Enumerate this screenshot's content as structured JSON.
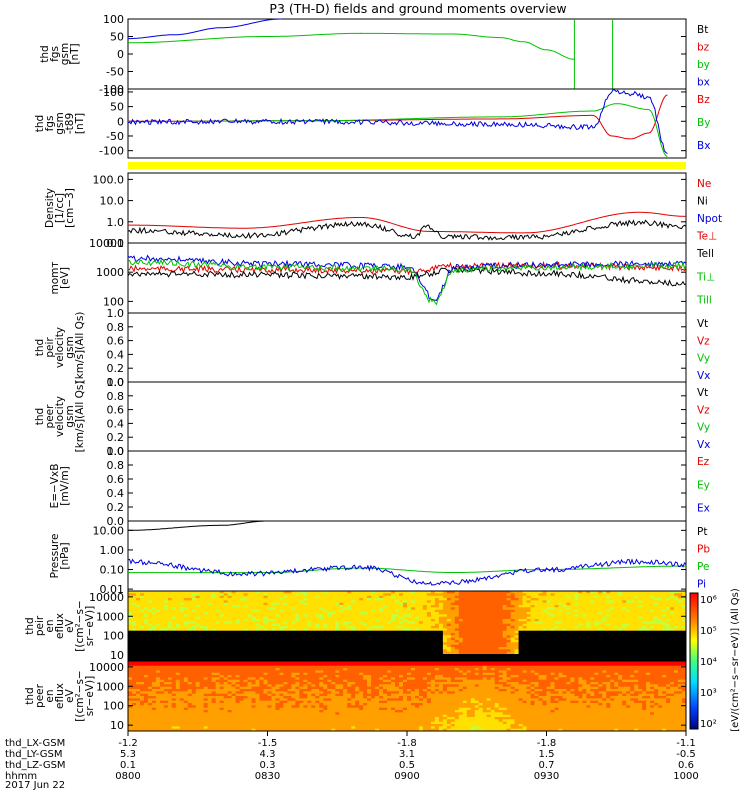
{
  "title": "P3 (TH-D) fields and ground moments overview",
  "date_label": "2017 Jun 22",
  "colors": {
    "black": "#000000",
    "red": "#e00000",
    "green": "#00c000",
    "blue": "#0000e0",
    "yellow": "#ffff00"
  },
  "colorbar": {
    "ticks": [
      "10⁶",
      "10⁵",
      "10⁴",
      "10³",
      "10²"
    ],
    "label": "[eV/(cm²−s−sr−eV)] (All Qs)"
  },
  "x_axis": {
    "tick_times": [
      "0800",
      "0830",
      "0900",
      "0930",
      "1000"
    ],
    "rows": [
      {
        "name": "thd_LX-GSM",
        "values": [
          "-1.2",
          "-1.5",
          "-1.8",
          "-1.8",
          "-1.1"
        ]
      },
      {
        "name": "thd_LY-GSM",
        "values": [
          "5.3",
          "4.3",
          "3.1",
          "1.5",
          "-0.5"
        ]
      },
      {
        "name": "thd_LZ-GSM",
        "values": [
          "0.1",
          "0.3",
          "0.5",
          "0.7",
          "0.6"
        ]
      },
      {
        "name": "hhmm",
        "values": [
          "0800",
          "0830",
          "0900",
          "0930",
          "1000"
        ]
      }
    ]
  },
  "chart_data": [
    {
      "type": "line",
      "ylabel": [
        "thd",
        "fgs",
        "gsm",
        "[nT]"
      ],
      "yticks": [
        "100",
        "50",
        "0",
        "-50",
        "-100"
      ],
      "ylim": [
        -100,
        100
      ],
      "legend": [
        {
          "name": "Bt",
          "color": "black"
        },
        {
          "name": "bz",
          "color": "red"
        },
        {
          "name": "by",
          "color": "green"
        },
        {
          "name": "bx",
          "color": "blue"
        }
      ],
      "series": [
        {
          "name": "bx",
          "color": "blue",
          "x": [
            "08:00",
            "08:10",
            "08:20",
            "08:33"
          ],
          "y": [
            44,
            55,
            75,
            100
          ]
        },
        {
          "name": "by",
          "color": "green",
          "x": [
            "08:00",
            "08:30",
            "08:50",
            "09:10",
            "09:20",
            "09:25",
            "09:30",
            "09:36"
          ],
          "y": [
            32,
            50,
            59,
            57,
            47,
            35,
            12,
            -15
          ]
        }
      ]
    },
    {
      "type": "line",
      "ylabel": [
        "thd",
        "fgs",
        "gsm",
        "-t89",
        "[nT]"
      ],
      "yticks": [
        "100",
        "50",
        "0",
        "-50",
        "-100"
      ],
      "ylim": [
        -125,
        110
      ],
      "legend": [
        {
          "name": "Bz",
          "color": "red"
        },
        {
          "name": "By",
          "color": "green"
        },
        {
          "name": "Bx",
          "color": "blue"
        }
      ],
      "series": [
        {
          "name": "Bz",
          "color": "red",
          "x": [
            "08:00",
            "08:40",
            "09:20",
            "09:40",
            "09:44",
            "09:48",
            "09:52",
            "09:56"
          ],
          "y": [
            0,
            2,
            8,
            20,
            -50,
            -60,
            -40,
            90
          ]
        },
        {
          "name": "By",
          "color": "green",
          "x": [
            "08:00",
            "08:40",
            "09:20",
            "09:40",
            "09:45",
            "09:52",
            "09:56"
          ],
          "y": [
            -1,
            2,
            15,
            35,
            60,
            40,
            -120
          ]
        },
        {
          "name": "Bx",
          "color": "blue",
          "x": [
            "08:00",
            "08:40",
            "09:20",
            "09:40",
            "09:44",
            "09:48",
            "09:52",
            "09:56"
          ],
          "y": [
            -2,
            -1,
            -10,
            -20,
            100,
            95,
            80,
            -110
          ]
        }
      ]
    },
    {
      "type": "line",
      "yscale": "log",
      "ylabel": [
        "Density",
        "[1/cc]",
        "[cm−3]"
      ],
      "yticks": [
        "100.0",
        "10.0",
        "1.0",
        "0.1"
      ],
      "ylim": [
        0.1,
        200
      ],
      "legend": [
        {
          "name": "Ne",
          "color": "red"
        },
        {
          "name": "Ni",
          "color": "black"
        },
        {
          "name": "Npot",
          "color": "blue"
        },
        {
          "name": "Te⊥",
          "color": "red"
        }
      ],
      "series": [
        {
          "name": "Ne",
          "color": "red",
          "x": [
            "08:00",
            "08:25",
            "08:50",
            "09:05",
            "09:25",
            "09:50",
            "10:00"
          ],
          "y": [
            0.7,
            0.5,
            1.6,
            0.35,
            0.3,
            2.8,
            1.8
          ]
        },
        {
          "name": "Ni",
          "color": "black",
          "x": [
            "08:00",
            "08:25",
            "08:50",
            "09:02",
            "09:04",
            "09:08",
            "09:25",
            "09:50",
            "10:00"
          ],
          "y": [
            0.4,
            0.22,
            0.8,
            0.2,
            0.7,
            0.2,
            0.18,
            0.9,
            0.6
          ]
        }
      ]
    },
    {
      "type": "line",
      "yscale": "log",
      "ylabel": [
        "momт",
        "[eV]"
      ],
      "yticks": [
        "10000",
        "1000",
        "100"
      ],
      "ylim": [
        40,
        10000
      ],
      "legend": [
        {
          "name": "Tell",
          "color": "black"
        },
        {
          "name": "Ti⊥",
          "color": "green"
        },
        {
          "name": "Till",
          "color": "green"
        }
      ],
      "series": [
        {
          "name": "Te⊥",
          "color": "red",
          "x": [
            "08:00",
            "08:30",
            "09:00",
            "09:10",
            "09:30",
            "10:00"
          ],
          "y": [
            1300,
            1200,
            1100,
            1600,
            1700,
            1400
          ]
        },
        {
          "name": "Tell",
          "color": "black",
          "x": [
            "08:00",
            "08:30",
            "09:00",
            "09:10",
            "09:30",
            "10:00"
          ],
          "y": [
            900,
            800,
            700,
            1200,
            900,
            400
          ]
        },
        {
          "name": "Ti⊥",
          "color": "blue",
          "x": [
            "08:00",
            "08:30",
            "09:00",
            "09:06",
            "09:10",
            "09:30",
            "10:00"
          ],
          "y": [
            3000,
            2000,
            1600,
            120,
            1500,
            1800,
            2000
          ]
        },
        {
          "name": "Till",
          "color": "green",
          "x": [
            "08:00",
            "08:30",
            "09:00",
            "09:06",
            "09:10",
            "09:30",
            "10:00"
          ],
          "y": [
            2200,
            1500,
            1300,
            90,
            1200,
            1500,
            1700
          ]
        }
      ]
    },
    {
      "type": "line",
      "ylabel": [
        "thd",
        "peir",
        "velocity",
        "gsm",
        "[km/s](All Qs)"
      ],
      "yticks": [
        "1.0",
        "0.8",
        "0.6",
        "0.4",
        "0.2",
        "0.0"
      ],
      "ylim": [
        0,
        1
      ],
      "legend": [
        {
          "name": "Vt",
          "color": "black"
        },
        {
          "name": "Vz",
          "color": "red"
        },
        {
          "name": "Vy",
          "color": "green"
        },
        {
          "name": "Vx",
          "color": "blue"
        }
      ],
      "series": []
    },
    {
      "type": "line",
      "ylabel": [
        "thd",
        "peer",
        "velocity",
        "gsm",
        "[km/s](All Qs)"
      ],
      "yticks": [
        "1.0",
        "0.8",
        "0.6",
        "0.4",
        "0.2",
        "0.0"
      ],
      "ylim": [
        0,
        1
      ],
      "legend": [
        {
          "name": "Vt",
          "color": "black"
        },
        {
          "name": "Vz",
          "color": "red"
        },
        {
          "name": "Vy",
          "color": "green"
        },
        {
          "name": "Vx",
          "color": "blue"
        }
      ],
      "series": []
    },
    {
      "type": "line",
      "ylabel": [
        "E=−VxB",
        "[mV/m]"
      ],
      "yticks": [
        "1.0",
        "0.8",
        "0.6",
        "0.4",
        "0.2",
        "0.0"
      ],
      "ylim": [
        0,
        1
      ],
      "legend": [
        {
          "name": "Ez",
          "color": "red"
        },
        {
          "name": "Ey",
          "color": "green"
        },
        {
          "name": "Ex",
          "color": "blue"
        }
      ],
      "series": []
    },
    {
      "type": "line",
      "yscale": "log",
      "ylabel": [
        "Pressure",
        "[nPa]"
      ],
      "yticks": [
        "10.00",
        "1.00",
        "0.10",
        "0.01"
      ],
      "ylim": [
        0.008,
        30
      ],
      "legend": [
        {
          "name": "Pt",
          "color": "black"
        },
        {
          "name": "Pb",
          "color": "red"
        },
        {
          "name": "Pe",
          "color": "green"
        },
        {
          "name": "Pi",
          "color": "blue"
        }
      ],
      "series": [
        {
          "name": "Pt",
          "color": "black",
          "x": [
            "08:00",
            "08:20",
            "08:30"
          ],
          "y": [
            10,
            18,
            30
          ]
        },
        {
          "name": "Pe",
          "color": "green",
          "x": [
            "08:00",
            "08:30",
            "08:50",
            "09:10",
            "09:30",
            "10:00"
          ],
          "y": [
            0.07,
            0.07,
            0.12,
            0.07,
            0.1,
            0.15
          ]
        },
        {
          "name": "Pi",
          "color": "blue",
          "x": [
            "08:00",
            "08:25",
            "08:50",
            "09:06",
            "09:30",
            "09:50",
            "10:00"
          ],
          "y": [
            0.25,
            0.06,
            0.13,
            0.018,
            0.1,
            0.25,
            0.18
          ]
        }
      ]
    },
    {
      "type": "heatmap",
      "ylabel": [
        "thd",
        "peir",
        "en",
        "eflux",
        "eV",
        "[(cm²−s−",
        "sr−eV)]"
      ],
      "yticks": [
        "10000",
        "1000",
        "100",
        "10"
      ],
      "ylim": [
        5,
        20000
      ],
      "description_values": {
        "energy_cutoff_eV": 150
      }
    },
    {
      "type": "heatmap",
      "ylabel": [
        "thd",
        "peer",
        "en",
        "eflux",
        "eV",
        "[(cm²−s−",
        "sr−eV)]"
      ],
      "yticks": [
        "10000",
        "1000",
        "100",
        "10"
      ],
      "ylim": [
        5,
        20000
      ]
    }
  ]
}
